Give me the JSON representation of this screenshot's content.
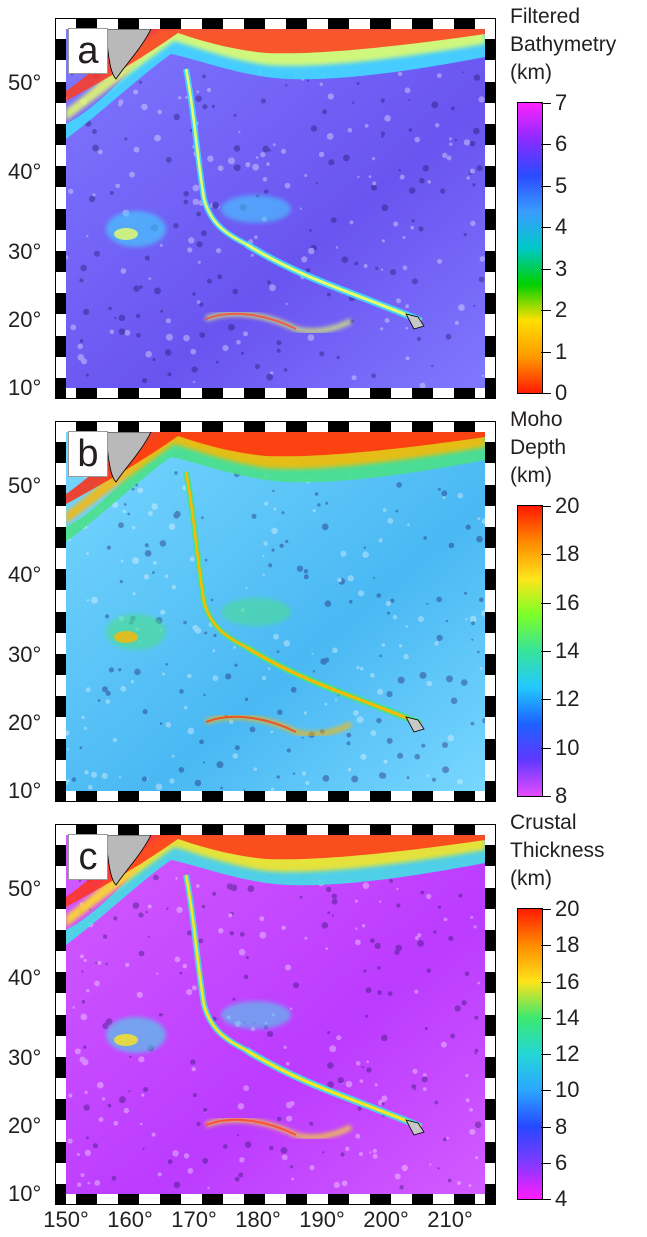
{
  "panels": [
    {
      "id": "a",
      "label": "a",
      "colorbar": {
        "title_lines": [
          "Filtered",
          "Bathymetry",
          "(km)"
        ],
        "ticks": [
          "0",
          "1",
          "2",
          "3",
          "4",
          "5",
          "6",
          "7"
        ],
        "colors": [
          "#ff1a00",
          "#ff9a00",
          "#ffe000",
          "#00d000",
          "#00c8c8",
          "#3a9cff",
          "#2a4bff",
          "#8a2bff",
          "#ff22ff"
        ]
      },
      "map_colors": {
        "ocean": "#6a54f0",
        "ocean_light": "#7f78ff",
        "ridge": "#41d8ff",
        "seamount": "#e8ff66",
        "arc": "#ff3b1f"
      }
    },
    {
      "id": "b",
      "label": "b",
      "colorbar": {
        "title_lines": [
          "Moho",
          "Depth",
          "(km)"
        ],
        "ticks": [
          "8",
          "10",
          "12",
          "14",
          "16",
          "18",
          "20"
        ],
        "colors": [
          "#e64cff",
          "#5e38ff",
          "#1d62ff",
          "#23c9ff",
          "#37e39a",
          "#7cff28",
          "#ffe51a",
          "#ff8a00",
          "#ff1900"
        ]
      },
      "map_colors": {
        "ocean": "#49b8f3",
        "ocean_light": "#78d7ff",
        "ridge": "#4ae08a",
        "seamount": "#ffb800",
        "arc": "#ff2d0f"
      }
    },
    {
      "id": "c",
      "label": "c",
      "colorbar": {
        "title_lines": [
          "Crustal",
          "Thickness",
          "(km)"
        ],
        "ticks": [
          "4",
          "6",
          "8",
          "10",
          "12",
          "14",
          "16",
          "18",
          "20"
        ],
        "colors": [
          "#ff1cff",
          "#7f3aff",
          "#2648ff",
          "#2ca6ff",
          "#24d7d7",
          "#3ce86f",
          "#ffe31a",
          "#ff8c00",
          "#ff1b00"
        ]
      },
      "map_colors": {
        "ocean": "#bb3bff",
        "ocean_light": "#d35bff",
        "ridge": "#43dfe6",
        "seamount": "#ffe61d",
        "arc": "#ff341a"
      }
    }
  ],
  "latitude_labels": [
    "50°",
    "40°",
    "30°",
    "20°",
    "10°"
  ],
  "longitude_labels": [
    "150°",
    "160°",
    "170°",
    "180°",
    "190°",
    "200°",
    "210°"
  ]
}
